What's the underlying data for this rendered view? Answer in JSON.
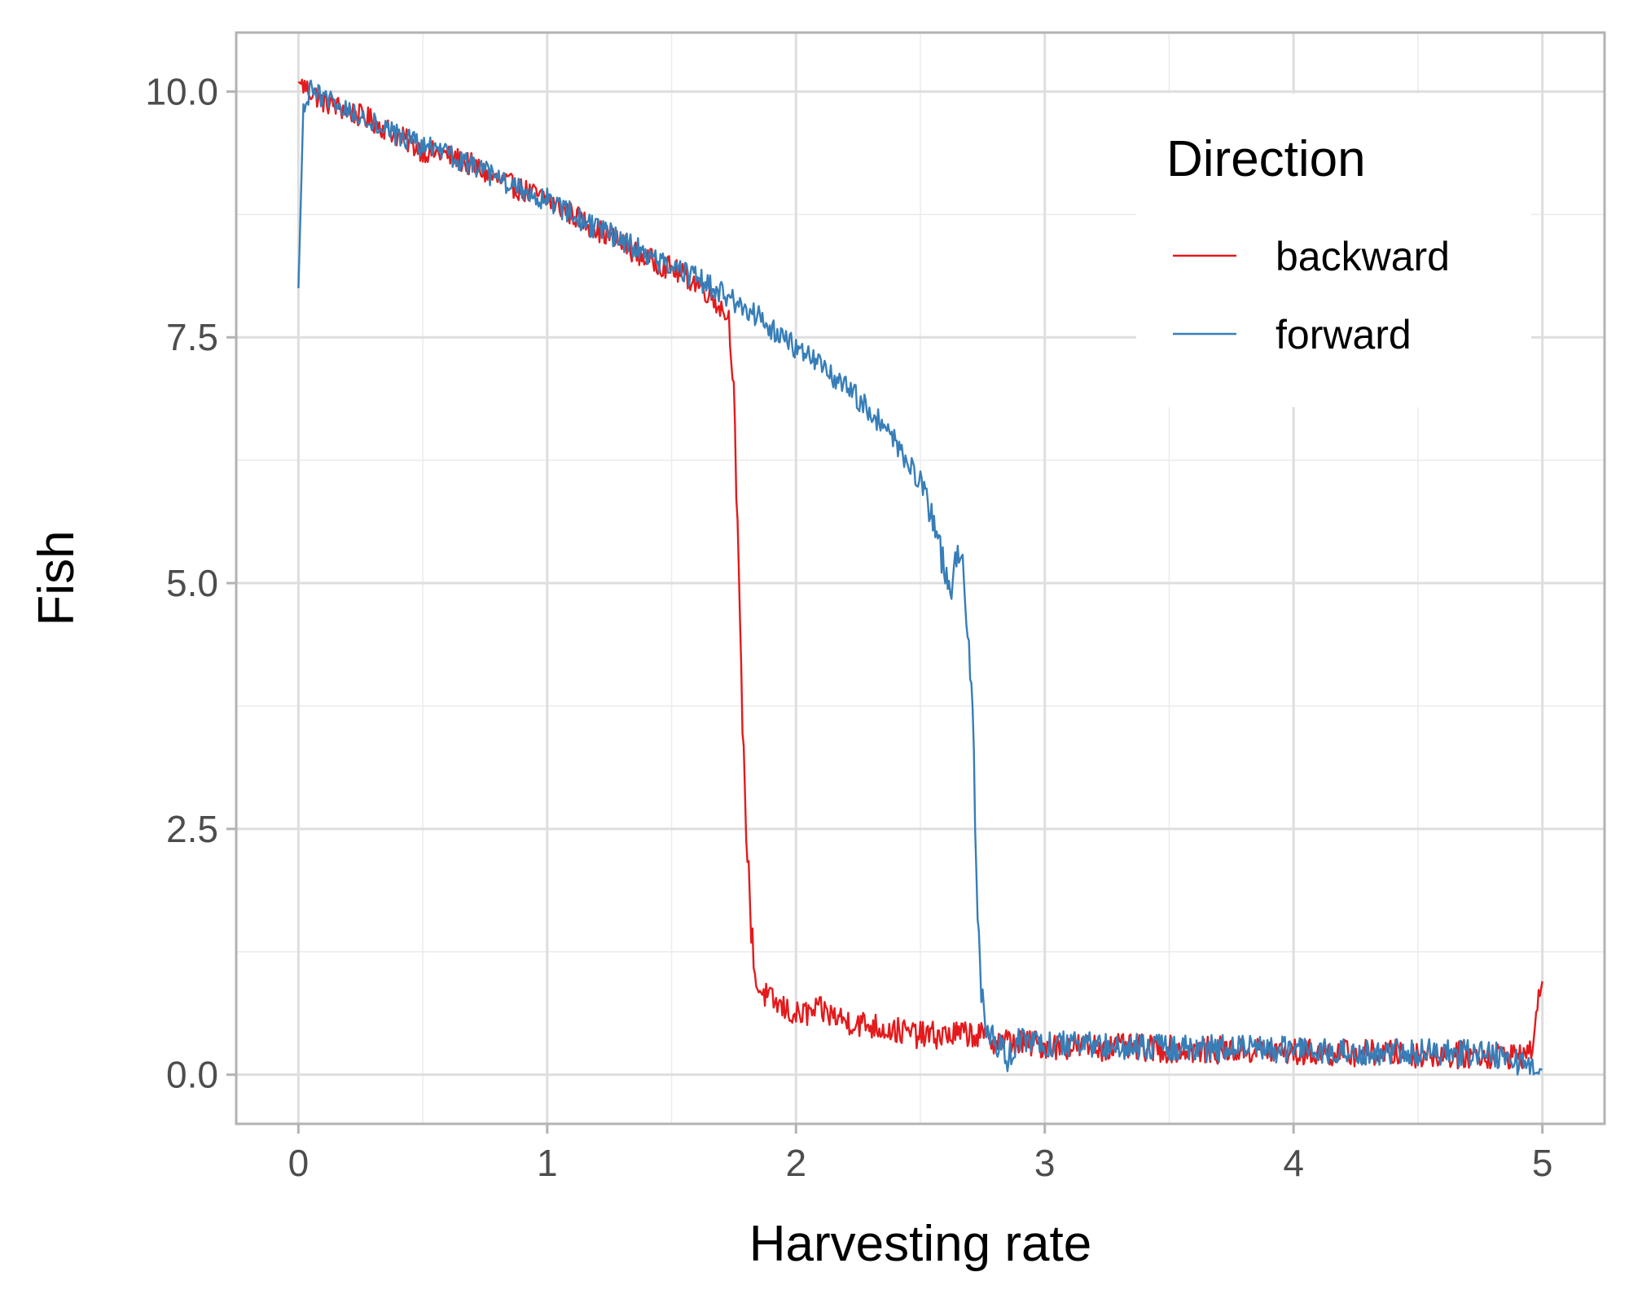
{
  "chart_data": {
    "type": "line",
    "xlabel": "Harvesting rate",
    "ylabel": "Fish",
    "xlim": [
      -0.25,
      5.25
    ],
    "ylim": [
      -0.5,
      10.6
    ],
    "x_ticks": [
      0,
      1,
      2,
      3,
      4,
      5
    ],
    "x_tick_labels": [
      "0",
      "1",
      "2",
      "3",
      "4",
      "5"
    ],
    "y_ticks": [
      0,
      2.5,
      5,
      7.5,
      10
    ],
    "y_tick_labels": [
      "0.0",
      "2.5",
      "5.0",
      "7.5",
      "10.0"
    ],
    "grid": true,
    "legend": {
      "title": "Direction",
      "position": "top-right",
      "entries": [
        "backward",
        "forward"
      ]
    },
    "series": [
      {
        "name": "backward",
        "color": "#e41a1c",
        "points": [
          [
            0.0,
            10.1
          ],
          [
            0.1,
            9.9
          ],
          [
            0.2,
            9.8
          ],
          [
            0.3,
            9.7
          ],
          [
            0.4,
            9.55
          ],
          [
            0.5,
            9.4
          ],
          [
            0.6,
            9.35
          ],
          [
            0.7,
            9.25
          ],
          [
            0.8,
            9.1
          ],
          [
            0.9,
            9.0
          ],
          [
            1.0,
            8.9
          ],
          [
            1.1,
            8.75
          ],
          [
            1.2,
            8.6
          ],
          [
            1.3,
            8.45
          ],
          [
            1.4,
            8.3
          ],
          [
            1.5,
            8.2
          ],
          [
            1.6,
            8.05
          ],
          [
            1.65,
            7.95
          ],
          [
            1.7,
            7.8
          ],
          [
            1.73,
            7.7
          ],
          [
            1.75,
            7.0
          ],
          [
            1.77,
            5.0
          ],
          [
            1.78,
            4.0
          ],
          [
            1.8,
            2.5
          ],
          [
            1.82,
            1.5
          ],
          [
            1.84,
            0.9
          ],
          [
            1.9,
            0.75
          ],
          [
            2.0,
            0.6
          ],
          [
            2.1,
            0.65
          ],
          [
            2.2,
            0.55
          ],
          [
            2.3,
            0.5
          ],
          [
            2.4,
            0.45
          ],
          [
            2.5,
            0.4
          ],
          [
            2.6,
            0.4
          ],
          [
            2.7,
            0.42
          ],
          [
            2.8,
            0.35
          ],
          [
            3.0,
            0.3
          ],
          [
            3.2,
            0.28
          ],
          [
            3.4,
            0.27
          ],
          [
            3.6,
            0.25
          ],
          [
            3.8,
            0.25
          ],
          [
            4.0,
            0.23
          ],
          [
            4.2,
            0.22
          ],
          [
            4.4,
            0.22
          ],
          [
            4.6,
            0.2
          ],
          [
            4.8,
            0.2
          ],
          [
            4.95,
            0.2
          ],
          [
            5.0,
            0.95
          ]
        ]
      },
      {
        "name": "forward",
        "color": "#377eb8",
        "points": [
          [
            0.0,
            8.0
          ],
          [
            0.02,
            9.8
          ],
          [
            0.05,
            10.0
          ],
          [
            0.1,
            9.95
          ],
          [
            0.2,
            9.8
          ],
          [
            0.3,
            9.7
          ],
          [
            0.4,
            9.55
          ],
          [
            0.5,
            9.45
          ],
          [
            0.6,
            9.35
          ],
          [
            0.7,
            9.25
          ],
          [
            0.8,
            9.1
          ],
          [
            0.9,
            9.0
          ],
          [
            1.0,
            8.9
          ],
          [
            1.1,
            8.75
          ],
          [
            1.2,
            8.6
          ],
          [
            1.3,
            8.5
          ],
          [
            1.4,
            8.35
          ],
          [
            1.5,
            8.2
          ],
          [
            1.6,
            8.1
          ],
          [
            1.7,
            7.95
          ],
          [
            1.8,
            7.8
          ],
          [
            1.9,
            7.6
          ],
          [
            2.0,
            7.4
          ],
          [
            2.1,
            7.2
          ],
          [
            2.2,
            7.0
          ],
          [
            2.3,
            6.75
          ],
          [
            2.4,
            6.45
          ],
          [
            2.5,
            6.0
          ],
          [
            2.55,
            5.6
          ],
          [
            2.6,
            5.1
          ],
          [
            2.62,
            4.9
          ],
          [
            2.65,
            5.4
          ],
          [
            2.67,
            5.2
          ],
          [
            2.69,
            4.4
          ],
          [
            2.71,
            3.8
          ],
          [
            2.72,
            2.5
          ],
          [
            2.74,
            1.0
          ],
          [
            2.76,
            0.5
          ],
          [
            2.8,
            0.35
          ],
          [
            2.85,
            0.15
          ],
          [
            2.9,
            0.35
          ],
          [
            3.0,
            0.3
          ],
          [
            3.2,
            0.3
          ],
          [
            3.4,
            0.28
          ],
          [
            3.6,
            0.27
          ],
          [
            3.8,
            0.26
          ],
          [
            4.0,
            0.25
          ],
          [
            4.2,
            0.24
          ],
          [
            4.4,
            0.24
          ],
          [
            4.6,
            0.22
          ],
          [
            4.8,
            0.22
          ],
          [
            5.0,
            0.05
          ]
        ]
      }
    ]
  }
}
